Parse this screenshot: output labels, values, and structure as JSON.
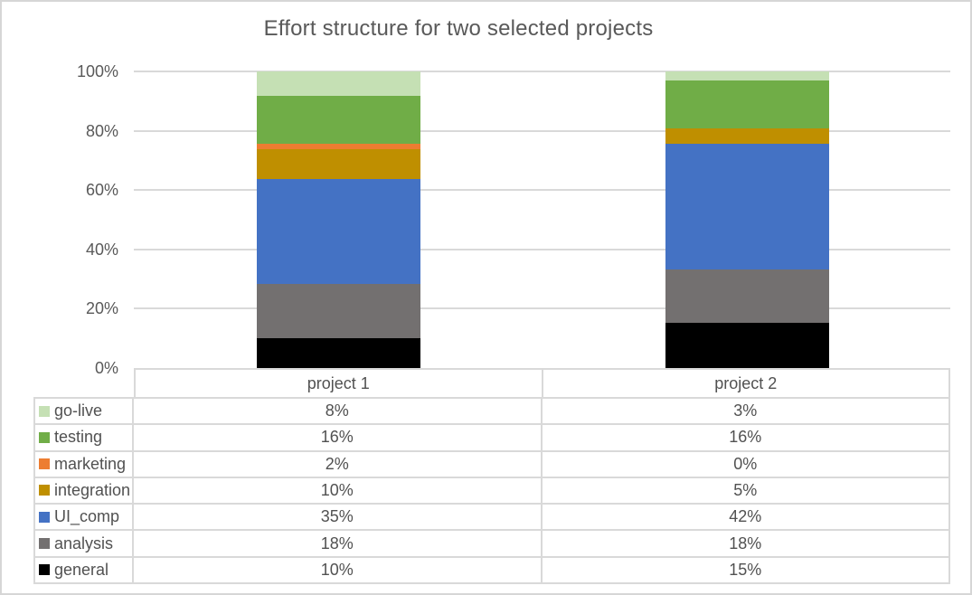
{
  "chart_data": {
    "type": "bar",
    "variant": "stacked-100-percent-column",
    "title": "Effort structure for two selected projects",
    "categories": [
      "project 1",
      "project 2"
    ],
    "series": [
      {
        "name": "go-live",
        "color": "#c5e0b4",
        "values": [
          8,
          3
        ],
        "display": [
          "8%",
          "3%"
        ]
      },
      {
        "name": "testing",
        "color": "#70ad47",
        "values": [
          16,
          16
        ],
        "display": [
          "16%",
          "16%"
        ]
      },
      {
        "name": "marketing",
        "color": "#ed7d31",
        "values": [
          2,
          0
        ],
        "display": [
          "2%",
          "0%"
        ]
      },
      {
        "name": "integration",
        "color": "#bf8f00",
        "values": [
          10,
          5
        ],
        "display": [
          "10%",
          "5%"
        ]
      },
      {
        "name": "UI_comp",
        "color": "#4472c4",
        "values": [
          35,
          42
        ],
        "display": [
          "35%",
          "42%"
        ]
      },
      {
        "name": "analysis",
        "color": "#737070",
        "values": [
          18,
          18
        ],
        "display": [
          "18%",
          "18%"
        ]
      },
      {
        "name": "general",
        "color": "#000000",
        "values": [
          10,
          15
        ],
        "display": [
          "10%",
          "15%"
        ]
      }
    ],
    "stack_order_bottom_to_top": [
      "general",
      "analysis",
      "UI_comp",
      "integration",
      "marketing",
      "testing",
      "go-live"
    ],
    "y_axis": {
      "tick_labels": [
        "0%",
        "20%",
        "40%",
        "60%",
        "80%",
        "100%"
      ],
      "tick_values": [
        0,
        20,
        40,
        60,
        80,
        100
      ],
      "ylim": [
        0,
        100
      ],
      "grid": true
    },
    "legend_position": "data-table-left-column",
    "colors": {
      "gridline": "#d9d9d9",
      "table_border": "#d9d9d9",
      "title_text": "#595959",
      "axis_text": "#595959",
      "table_text": "#515151",
      "background": "#ffffff"
    }
  }
}
